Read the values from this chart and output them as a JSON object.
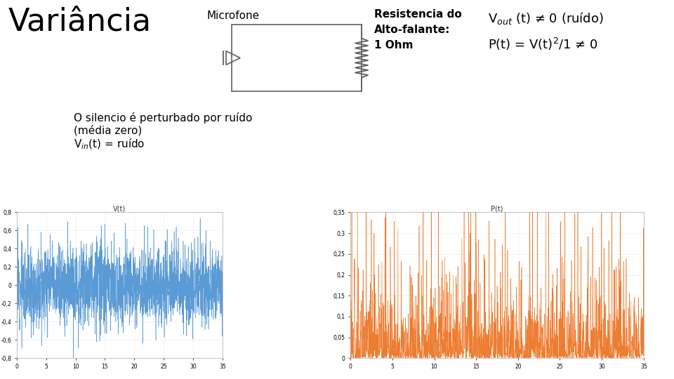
{
  "title": "Variância",
  "microfone_label": "Microfone",
  "resistencia_label": "Resistencia do\nAlto-falante:\n1 Ohm",
  "vout_formula": "V$_{out}$ (t) ≠ 0 (ruído)",
  "pt_formula": "P(t) = V(t)$^2$/1 ≠ 0",
  "silence_line1": "O silencio é perturbado por ruído",
  "silence_line2": "(média zero)",
  "silence_line3": "V$_{in}$(t) = ruído",
  "bg_color": "#ffffff",
  "text_color": "#000000",
  "plot1_color": "#5b9bd5",
  "plot2_color": "#ed7d31",
  "title_fontsize": 32,
  "microfone_fontsize": 11,
  "resistencia_fontsize": 11,
  "formula_fontsize": 13,
  "silence_fontsize": 11,
  "circuit_color": "#606060"
}
